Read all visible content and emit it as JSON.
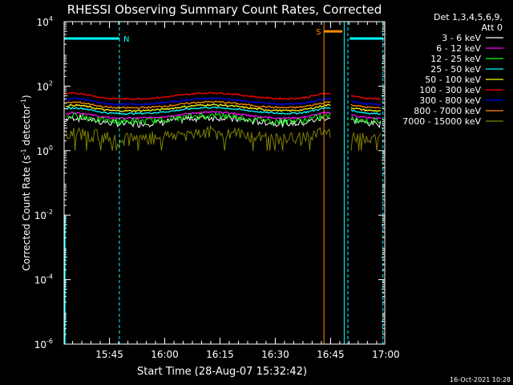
{
  "chart_data": {
    "type": "line",
    "title": "RHESSI Observing Summary Count Rates, Corrected",
    "xlabel": "Start Time (28-Aug-07 15:32:42)",
    "ylabel_main": "Corrected Count Rate (s",
    "ylabel_sup1": "-1",
    "ylabel_mid": " detector",
    "ylabel_sup2": "-1",
    "ylabel_end": ")",
    "y_scale": "log",
    "ylim": [
      1e-06,
      10000
    ],
    "y_ticks": [
      {
        "value": 1e-06,
        "base": "10",
        "exp": "-6"
      },
      {
        "value": 0.0001,
        "base": "10",
        "exp": "-4"
      },
      {
        "value": 0.01,
        "base": "10",
        "exp": "-2"
      },
      {
        "value": 1,
        "base": "10",
        "exp": "0"
      },
      {
        "value": 100,
        "base": "10",
        "exp": "2"
      },
      {
        "value": 10000,
        "base": "10",
        "exp": "4"
      }
    ],
    "x_unit": "minutes after 15:32:42",
    "xlim": [
      0,
      87
    ],
    "x_ticks": [
      {
        "value": 12.3,
        "label": "15:45"
      },
      {
        "value": 27.3,
        "label": "16:00"
      },
      {
        "value": 42.3,
        "label": "16:15"
      },
      {
        "value": 57.3,
        "label": "16:30"
      },
      {
        "value": 72.3,
        "label": "16:45"
      },
      {
        "value": 87.3,
        "label": "17:00"
      }
    ],
    "legend_header": [
      "Det 1,3,4,5,6,9,",
      "Att 0"
    ],
    "legend_position": "right",
    "gap": [
      72.5,
      77.5
    ],
    "series": [
      {
        "name": "3 - 6 keV",
        "color": "#ffffff",
        "base": 7,
        "noisy": true
      },
      {
        "name": "6 - 12 keV",
        "color": "#ff00ff",
        "base": 10,
        "noisy": false
      },
      {
        "name": "12 - 25 keV",
        "color": "#00ff00",
        "base": 8,
        "noisy": true
      },
      {
        "name": "25 - 50 keV",
        "color": "#00ffff",
        "base": 14,
        "noisy": false
      },
      {
        "name": "50 - 100 keV",
        "color": "#ffff00",
        "base": 17,
        "noisy": false
      },
      {
        "name": "100 - 300 keV",
        "color": "#ff0000",
        "base": 40,
        "noisy": false
      },
      {
        "name": "300 - 800 keV",
        "color": "#0000ff",
        "base": 27,
        "noisy": false
      },
      {
        "name": "800 - 7000 keV",
        "color": "#ff8c00",
        "base": 21,
        "noisy": false
      },
      {
        "name": "7000 - 15000 keV",
        "color": "#808000",
        "base": 2.5,
        "noisy": true
      }
    ],
    "annotations": [
      {
        "label": "N",
        "color": "#00ffff",
        "x_start": 0,
        "x_end": 15,
        "level": 3000
      },
      {
        "label": "S",
        "color": "#ff8c00",
        "x_start": 70.5,
        "x_end": 75.5,
        "level": 5000
      }
    ],
    "vlines": [
      {
        "x": 15,
        "color": "#00ffff",
        "dashed": true
      },
      {
        "x": 86.5,
        "color": "#00ffff",
        "dashed": true
      },
      {
        "x": 76,
        "color": "#00ffff",
        "dashed": false
      },
      {
        "x": 77,
        "color": "#00ffff",
        "dashed": true
      },
      {
        "x": 70.5,
        "color": "#ff8c00",
        "dashed": false
      }
    ],
    "sat_bars": [
      {
        "x_start": 77.5,
        "x_end": 86.5,
        "level": 3000,
        "color": "#00ffff"
      }
    ],
    "footer": "16-Oct-2021 10:28"
  }
}
